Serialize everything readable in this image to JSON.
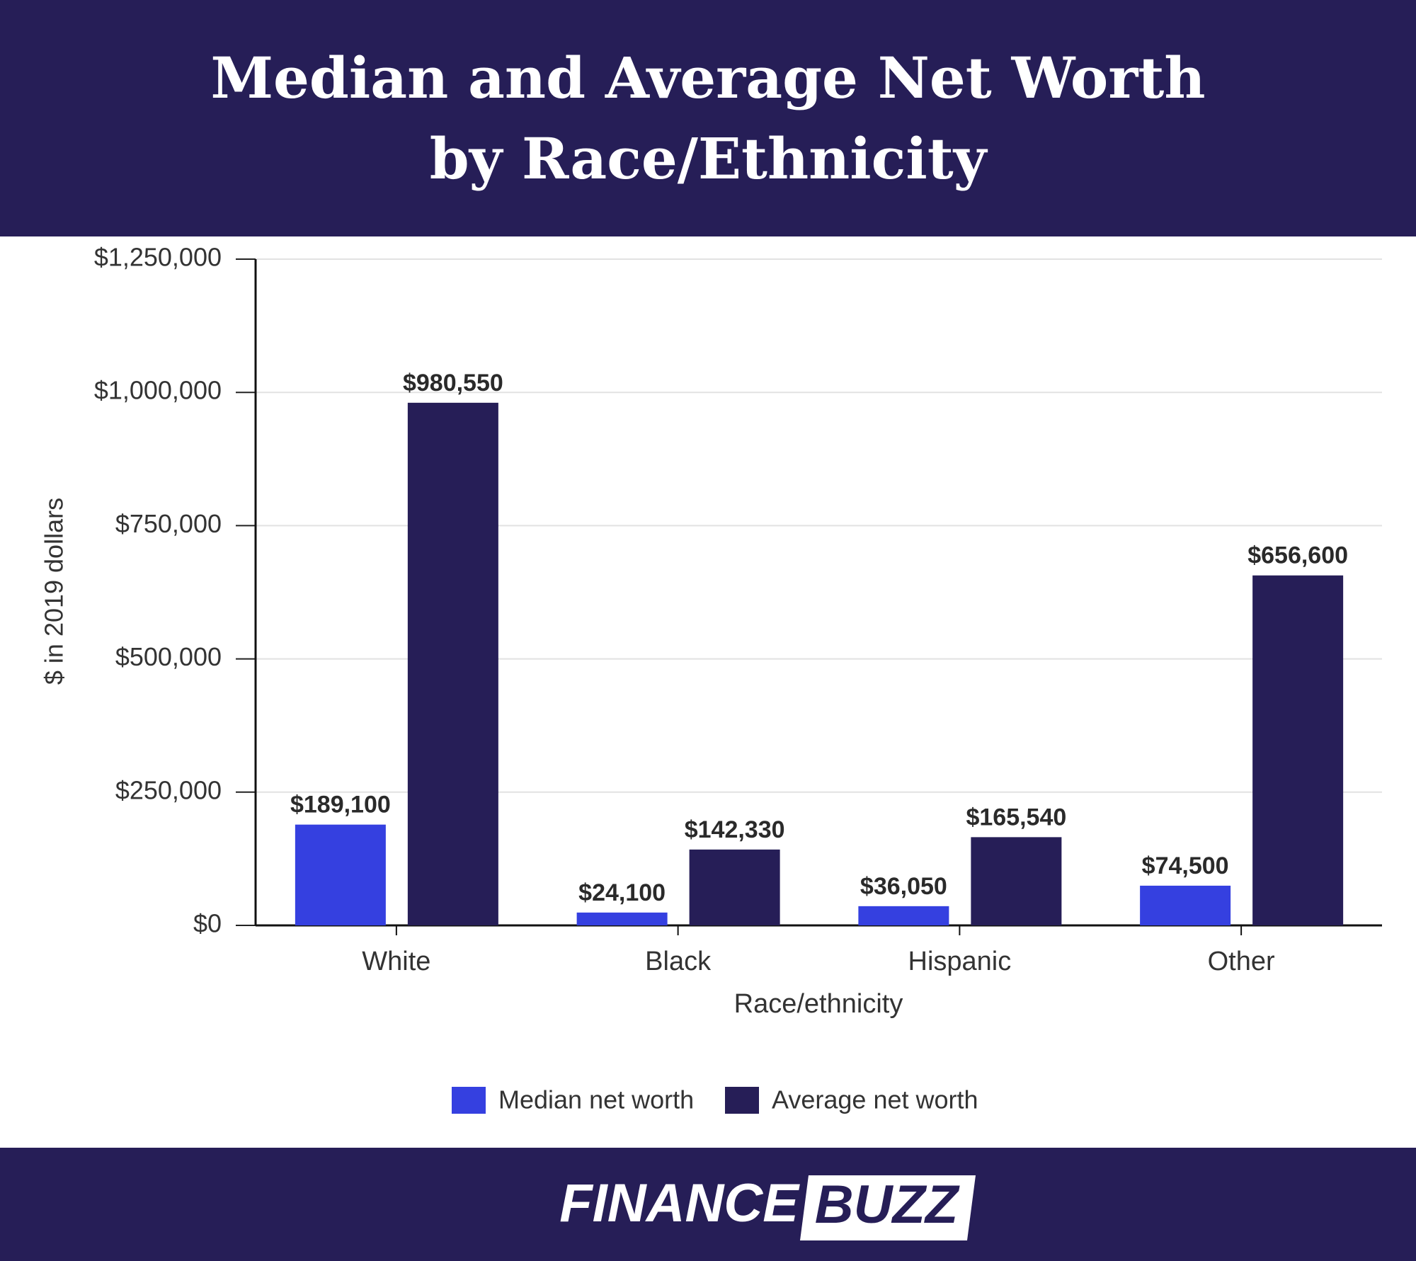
{
  "chart_data": {
    "type": "bar",
    "title": "Median and Average Net Worth by Race/Ethnicity",
    "x_label": "Race/ethnicity",
    "y_label": "$ in 2019 dollars",
    "categories": [
      "White",
      "Black",
      "Hispanic",
      "Other"
    ],
    "series": [
      {
        "name": "Median net worth",
        "color": "#3540e0",
        "values": [
          189100,
          24100,
          36050,
          74500
        ],
        "value_labels": [
          "$189,100",
          "$24,100",
          "$36,050",
          "$74,500"
        ]
      },
      {
        "name": "Average net worth",
        "color": "#261e57",
        "values": [
          980550,
          142330,
          165540,
          656600
        ],
        "value_labels": [
          "$980,550",
          "$142,330",
          "$165,540",
          "$656,600"
        ]
      }
    ],
    "ylim": [
      0,
      1250000
    ],
    "yticks": [
      {
        "value": 0,
        "label": "$0"
      },
      {
        "value": 250000,
        "label": "$250,000"
      },
      {
        "value": 500000,
        "label": "$500,000"
      },
      {
        "value": 750000,
        "label": "$750,000"
      },
      {
        "value": 1000000,
        "label": "$1,000,000"
      },
      {
        "value": 1250000,
        "label": "$1,250,000"
      }
    ],
    "grid": true,
    "legend": "bottom"
  },
  "footer": {
    "logo_left": "FINANCE",
    "logo_right": "BUZZ"
  }
}
